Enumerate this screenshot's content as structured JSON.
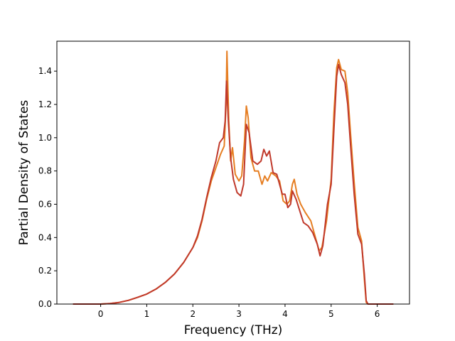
{
  "chart_data": {
    "type": "line",
    "title": "",
    "xlabel": "Frequency (THz)",
    "ylabel": "Partial Density of States",
    "xlim": [
      -0.95,
      6.7
    ],
    "ylim": [
      0,
      1.58
    ],
    "xticks": [
      "0",
      "1",
      "2",
      "3",
      "4",
      "5",
      "6"
    ],
    "yticks": [
      "0.0",
      "0.2",
      "0.4",
      "0.6",
      "0.8",
      "1.0",
      "1.2",
      "1.4"
    ],
    "xtick_values": [
      0,
      1,
      2,
      3,
      4,
      5,
      6
    ],
    "ytick_values": [
      0.0,
      0.2,
      0.4,
      0.6,
      0.8,
      1.0,
      1.2,
      1.4
    ],
    "grid": false,
    "series": [
      {
        "color": "#e67e22",
        "points": [
          [
            -0.6,
            0
          ],
          [
            -0.2,
            0
          ],
          [
            0,
            0
          ],
          [
            0.2,
            0.003
          ],
          [
            0.4,
            0.01
          ],
          [
            0.6,
            0.022
          ],
          [
            0.8,
            0.04
          ],
          [
            1.0,
            0.06
          ],
          [
            1.2,
            0.09
          ],
          [
            1.4,
            0.13
          ],
          [
            1.6,
            0.18
          ],
          [
            1.8,
            0.25
          ],
          [
            2.0,
            0.34
          ],
          [
            2.1,
            0.4
          ],
          [
            2.2,
            0.5
          ],
          [
            2.3,
            0.63
          ],
          [
            2.4,
            0.74
          ],
          [
            2.5,
            0.82
          ],
          [
            2.6,
            0.9
          ],
          [
            2.68,
            0.95
          ],
          [
            2.72,
            1.2
          ],
          [
            2.74,
            1.52
          ],
          [
            2.78,
            1.1
          ],
          [
            2.82,
            0.86
          ],
          [
            2.86,
            0.94
          ],
          [
            2.92,
            0.78
          ],
          [
            3.0,
            0.74
          ],
          [
            3.06,
            0.77
          ],
          [
            3.12,
            0.98
          ],
          [
            3.16,
            1.19
          ],
          [
            3.2,
            1.12
          ],
          [
            3.26,
            0.88
          ],
          [
            3.34,
            0.8
          ],
          [
            3.42,
            0.8
          ],
          [
            3.5,
            0.72
          ],
          [
            3.56,
            0.77
          ],
          [
            3.62,
            0.74
          ],
          [
            3.7,
            0.79
          ],
          [
            3.8,
            0.77
          ],
          [
            3.88,
            0.74
          ],
          [
            3.96,
            0.62
          ],
          [
            4.04,
            0.6
          ],
          [
            4.1,
            0.62
          ],
          [
            4.16,
            0.72
          ],
          [
            4.2,
            0.75
          ],
          [
            4.26,
            0.66
          ],
          [
            4.34,
            0.6
          ],
          [
            4.44,
            0.55
          ],
          [
            4.56,
            0.5
          ],
          [
            4.66,
            0.4
          ],
          [
            4.74,
            0.32
          ],
          [
            4.8,
            0.34
          ],
          [
            4.9,
            0.5
          ],
          [
            5.0,
            0.75
          ],
          [
            5.06,
            1.15
          ],
          [
            5.12,
            1.42
          ],
          [
            5.16,
            1.47
          ],
          [
            5.22,
            1.41
          ],
          [
            5.3,
            1.4
          ],
          [
            5.36,
            1.27
          ],
          [
            5.42,
            1.03
          ],
          [
            5.5,
            0.73
          ],
          [
            5.58,
            0.46
          ],
          [
            5.66,
            0.38
          ],
          [
            5.72,
            0.15
          ],
          [
            5.76,
            0.01
          ],
          [
            5.8,
            0
          ],
          [
            6.0,
            0
          ],
          [
            6.35,
            0
          ]
        ]
      },
      {
        "color": "#c0392b",
        "points": [
          [
            -0.6,
            0
          ],
          [
            -0.2,
            0
          ],
          [
            0,
            0
          ],
          [
            0.2,
            0.003
          ],
          [
            0.4,
            0.01
          ],
          [
            0.6,
            0.022
          ],
          [
            0.8,
            0.04
          ],
          [
            1.0,
            0.06
          ],
          [
            1.2,
            0.09
          ],
          [
            1.4,
            0.13
          ],
          [
            1.6,
            0.18
          ],
          [
            1.8,
            0.25
          ],
          [
            2.0,
            0.34
          ],
          [
            2.1,
            0.41
          ],
          [
            2.2,
            0.51
          ],
          [
            2.3,
            0.64
          ],
          [
            2.4,
            0.76
          ],
          [
            2.5,
            0.86
          ],
          [
            2.58,
            0.97
          ],
          [
            2.66,
            1.0
          ],
          [
            2.7,
            1.1
          ],
          [
            2.73,
            1.34
          ],
          [
            2.77,
            1.1
          ],
          [
            2.82,
            0.88
          ],
          [
            2.88,
            0.75
          ],
          [
            2.96,
            0.67
          ],
          [
            3.04,
            0.65
          ],
          [
            3.1,
            0.72
          ],
          [
            3.16,
            1.08
          ],
          [
            3.22,
            1.03
          ],
          [
            3.3,
            0.86
          ],
          [
            3.4,
            0.84
          ],
          [
            3.48,
            0.86
          ],
          [
            3.54,
            0.93
          ],
          [
            3.6,
            0.89
          ],
          [
            3.66,
            0.92
          ],
          [
            3.74,
            0.79
          ],
          [
            3.82,
            0.78
          ],
          [
            3.88,
            0.72
          ],
          [
            3.94,
            0.66
          ],
          [
            4.0,
            0.66
          ],
          [
            4.06,
            0.58
          ],
          [
            4.12,
            0.6
          ],
          [
            4.16,
            0.68
          ],
          [
            4.24,
            0.63
          ],
          [
            4.32,
            0.56
          ],
          [
            4.4,
            0.49
          ],
          [
            4.5,
            0.47
          ],
          [
            4.6,
            0.43
          ],
          [
            4.7,
            0.36
          ],
          [
            4.76,
            0.29
          ],
          [
            4.82,
            0.35
          ],
          [
            4.92,
            0.6
          ],
          [
            5.0,
            0.72
          ],
          [
            5.06,
            1.05
          ],
          [
            5.12,
            1.37
          ],
          [
            5.16,
            1.44
          ],
          [
            5.22,
            1.38
          ],
          [
            5.3,
            1.33
          ],
          [
            5.36,
            1.2
          ],
          [
            5.42,
            0.96
          ],
          [
            5.5,
            0.66
          ],
          [
            5.58,
            0.42
          ],
          [
            5.66,
            0.36
          ],
          [
            5.72,
            0.18
          ],
          [
            5.76,
            0.02
          ],
          [
            5.8,
            0
          ],
          [
            6.0,
            0
          ],
          [
            6.35,
            0
          ]
        ]
      }
    ]
  }
}
